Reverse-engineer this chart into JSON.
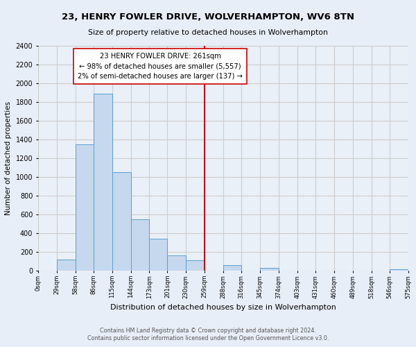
{
  "title": "23, HENRY FOWLER DRIVE, WOLVERHAMPTON, WV6 8TN",
  "subtitle": "Size of property relative to detached houses in Wolverhampton",
  "xlabel": "Distribution of detached houses by size in Wolverhampton",
  "ylabel": "Number of detached properties",
  "bin_labels": [
    "0sqm",
    "29sqm",
    "58sqm",
    "86sqm",
    "115sqm",
    "144sqm",
    "173sqm",
    "201sqm",
    "230sqm",
    "259sqm",
    "288sqm",
    "316sqm",
    "345sqm",
    "374sqm",
    "403sqm",
    "431sqm",
    "460sqm",
    "489sqm",
    "518sqm",
    "546sqm",
    "575sqm"
  ],
  "bar_heights": [
    0,
    120,
    1350,
    1890,
    1050,
    550,
    340,
    165,
    110,
    0,
    60,
    0,
    30,
    0,
    0,
    0,
    0,
    0,
    0,
    15,
    0
  ],
  "bar_color": "#c5d8ee",
  "bar_edge_color": "#5a9fd4",
  "vline_color": "#cc0000",
  "annotation_text": "23 HENRY FOWLER DRIVE: 261sqm\n← 98% of detached houses are smaller (5,557)\n2% of semi-detached houses are larger (137) →",
  "annotation_box_edge": "#cc0000",
  "annotation_box_face": "#ffffff",
  "ylim": [
    0,
    2400
  ],
  "yticks": [
    0,
    200,
    400,
    600,
    800,
    1000,
    1200,
    1400,
    1600,
    1800,
    2000,
    2200,
    2400
  ],
  "grid_color": "#cccccc",
  "background_color": "#e8eef8",
  "plot_bg_color": "#eaf0f8",
  "footer_line1": "Contains HM Land Registry data © Crown copyright and database right 2024.",
  "footer_line2": "Contains public sector information licensed under the Open Government Licence v3.0."
}
